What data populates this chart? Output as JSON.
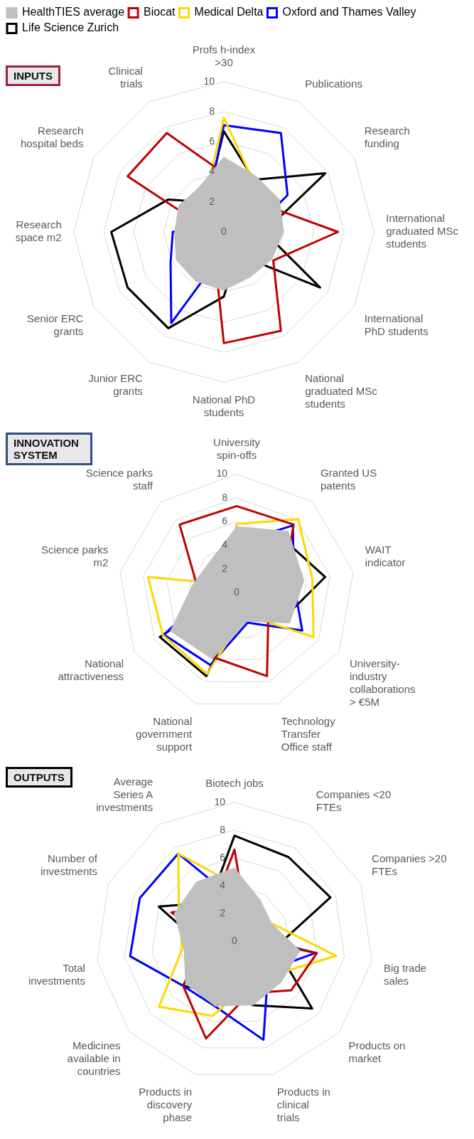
{
  "chart_data": [
    {
      "type": "radar",
      "title": "INPUTS",
      "legend": "top",
      "grid": true,
      "marker": "none",
      "ylim": [
        0,
        10
      ],
      "yticks": [
        0,
        2,
        4,
        6,
        8,
        10
      ],
      "categories": [
        "Profs h-index >30",
        "Publications",
        "Research funding",
        "International graduated MSc students",
        "International PhD students",
        "National graduated MSc students",
        "National PhD students",
        "Junior ERC grants",
        "Senior ERC grants",
        "Research space m2",
        "Research hospital beds",
        "Clinical trials"
      ],
      "series": [
        {
          "name": "HealthTIES average",
          "type": "area",
          "color": "#bfbfbf",
          "values": [
            5.0,
            4.3,
            4.3,
            4.0,
            3.7,
            3.5,
            3.9,
            3.8,
            3.7,
            3.3,
            3.5,
            3.4
          ]
        },
        {
          "name": "Biocat",
          "color": "#c00000",
          "values": [
            3.9,
            2.8,
            3.4,
            7.6,
            3.8,
            7.6,
            7.4,
            1.3,
            1.2,
            0.8,
            7.4,
            7.6
          ]
        },
        {
          "name": "Medical Delta",
          "color": "#ffd700",
          "values": [
            7.6,
            3.9,
            3.5,
            2.9,
            2.6,
            2.5,
            2.7,
            1.5,
            2.0,
            1.7,
            2.6,
            2.5
          ]
        },
        {
          "name": "Oxford and Thames Valley",
          "color": "#0000ff",
          "values": [
            7.1,
            7.6,
            4.9,
            1.8,
            0.9,
            0.5,
            1.3,
            7.0,
            4.1,
            3.4,
            1.2,
            2.1
          ]
        },
        {
          "name": "Life Science Zurich",
          "color": "#000000",
          "values": [
            6.7,
            4.0,
            7.8,
            2.7,
            7.4,
            1.7,
            4.3,
            7.4,
            7.4,
            7.5,
            4.3,
            2.3
          ]
        }
      ]
    },
    {
      "type": "radar",
      "title": "INNOVATION SYSTEM",
      "grid": true,
      "marker": "none",
      "ylim": [
        0,
        10
      ],
      "yticks": [
        0,
        2,
        4,
        6,
        8,
        10
      ],
      "categories": [
        "University spin-offs",
        "Granted US patents",
        "WAIT indicator",
        "University-industry collaborations > €5M",
        "Technology Transfer Office staff",
        "National government support",
        "National attractiveness",
        "Science parks m2",
        "Science parks staff"
      ],
      "series": [
        {
          "type": "area",
          "color": "#bfbfbf",
          "values": [
            5.6,
            6.8,
            5.8,
            5.2,
            2.6,
            6.0,
            6.5,
            3.8,
            3.5
          ]
        },
        {
          "color": "#c00000",
          "values": [
            7.3,
            7.5,
            4.0,
            3.1,
            7.5,
            5.8,
            6.1,
            3.4,
            7.5
          ]
        },
        {
          "color": "#ffd700",
          "values": [
            5.8,
            8.1,
            6.5,
            7.5,
            2.0,
            7.3,
            7.2,
            7.6,
            0.9
          ]
        },
        {
          "color": "#0000ff",
          "values": [
            4.2,
            7.4,
            4.9,
            6.4,
            2.7,
            6.5,
            7.1,
            2.0,
            2.2
          ]
        },
        {
          "color": "#000000",
          "values": [
            3.8,
            6.0,
            7.6,
            4.5,
            1.1,
            7.5,
            7.5,
            0.7,
            0.5
          ]
        }
      ]
    },
    {
      "type": "radar",
      "title": "OUTPUTS",
      "grid": true,
      "marker": "none",
      "ylim": [
        0,
        10
      ],
      "yticks": [
        0,
        2,
        4,
        6,
        8,
        10
      ],
      "categories": [
        "Biotech jobs",
        "Companies <20 FTEs",
        "Companies >20 FTEs",
        "Big trade sales",
        "Products on market",
        "Products in clinical trials",
        "Products in discovery phase",
        "Medicines available in countries",
        "Total investments",
        "Number of investments",
        "Average Series A investments"
      ],
      "series": [
        {
          "type": "area",
          "color": "#bfbfbf",
          "values": [
            5.3,
            3.5,
            3.0,
            4.8,
            4.5,
            4.8,
            4.9,
            4.7,
            3.7,
            4.8,
            5.1
          ]
        },
        {
          "color": "#c00000",
          "values": [
            6.6,
            1.6,
            0.6,
            6.0,
            5.4,
            3.9,
            7.3,
            4.9,
            1.3,
            5.0,
            2.9
          ]
        },
        {
          "color": "#ffd700",
          "values": [
            4.1,
            1.2,
            3.0,
            7.4,
            3.7,
            3.3,
            5.6,
            7.2,
            3.8,
            4.4,
            7.5
          ]
        },
        {
          "color": "#0000ff",
          "values": [
            3.0,
            0.8,
            1.0,
            5.9,
            3.2,
            7.4,
            4.9,
            4.9,
            7.6,
            7.5,
            7.5
          ]
        },
        {
          "color": "#000000",
          "values": [
            7.6,
            7.2,
            7.6,
            3.0,
            7.4,
            4.8,
            3.9,
            4.9,
            2.3,
            6.0,
            3.3
          ]
        }
      ]
    }
  ]
}
